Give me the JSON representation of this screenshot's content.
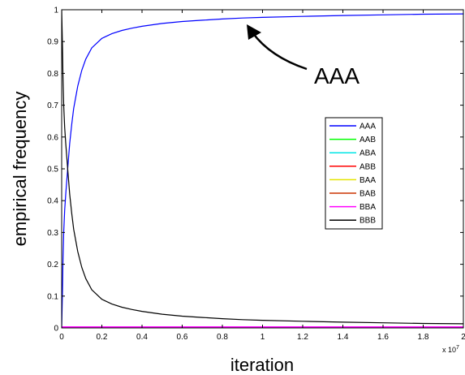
{
  "chart_data": {
    "type": "line",
    "xlabel": "iteration",
    "ylabel": "empirical frequency",
    "xlim": [
      0,
      2
    ],
    "ylim": [
      0,
      1
    ],
    "x_multiplier_label": "x 10",
    "x_multiplier_exponent": "7",
    "xticks": [
      "0",
      "0.2",
      "0.4",
      "0.6",
      "0.8",
      "1",
      "1.2",
      "1.4",
      "1.6",
      "1.8",
      "2"
    ],
    "yticks": [
      "0",
      "0.1",
      "0.2",
      "0.3",
      "0.4",
      "0.5",
      "0.6",
      "0.7",
      "0.8",
      "0.9",
      "1"
    ],
    "legend_position": "right",
    "annotation": {
      "text": "AAA",
      "points_to": [
        0.88,
        0.965
      ]
    },
    "series": [
      {
        "name": "AAA",
        "color": "#0000ff",
        "x": [
          0,
          0.004,
          0.006,
          0.01,
          0.015,
          0.02,
          0.03,
          0.04,
          0.05,
          0.06,
          0.08,
          0.1,
          0.12,
          0.15,
          0.2,
          0.25,
          0.3,
          0.35,
          0.4,
          0.5,
          0.6,
          0.7,
          0.8,
          0.9,
          1.0,
          1.2,
          1.4,
          1.6,
          1.8,
          2.0
        ],
        "y": [
          0,
          0.12,
          0.2,
          0.3,
          0.37,
          0.42,
          0.5,
          0.58,
          0.64,
          0.69,
          0.76,
          0.81,
          0.845,
          0.88,
          0.91,
          0.925,
          0.935,
          0.942,
          0.948,
          0.957,
          0.963,
          0.967,
          0.971,
          0.974,
          0.976,
          0.979,
          0.982,
          0.984,
          0.986,
          0.987
        ]
      },
      {
        "name": "AAB",
        "color": "#00ff00",
        "x": [
          0,
          2
        ],
        "y": [
          0.002,
          0.002
        ]
      },
      {
        "name": "ABA",
        "color": "#00e5e5",
        "x": [
          0,
          2
        ],
        "y": [
          0.002,
          0.002
        ]
      },
      {
        "name": "ABB",
        "color": "#ff0000",
        "x": [
          0,
          2
        ],
        "y": [
          0.003,
          0.003
        ]
      },
      {
        "name": "BAA",
        "color": "#e5e500",
        "x": [
          0,
          2
        ],
        "y": [
          0.002,
          0.002
        ]
      },
      {
        "name": "BAB",
        "color": "#cc3300",
        "x": [
          0,
          2
        ],
        "y": [
          0.002,
          0.002
        ]
      },
      {
        "name": "BBA",
        "color": "#ff00ff",
        "x": [
          0,
          2
        ],
        "y": [
          0.003,
          0.003
        ]
      },
      {
        "name": "BBB",
        "color": "#000000",
        "x": [
          0,
          0.004,
          0.006,
          0.01,
          0.015,
          0.02,
          0.03,
          0.04,
          0.05,
          0.06,
          0.08,
          0.1,
          0.12,
          0.15,
          0.2,
          0.25,
          0.3,
          0.35,
          0.4,
          0.5,
          0.6,
          0.7,
          0.8,
          0.9,
          1.0,
          1.2,
          1.4,
          1.6,
          1.8,
          2.0
        ],
        "y": [
          1.0,
          0.88,
          0.8,
          0.7,
          0.63,
          0.58,
          0.5,
          0.42,
          0.36,
          0.31,
          0.24,
          0.19,
          0.155,
          0.12,
          0.09,
          0.075,
          0.065,
          0.058,
          0.052,
          0.043,
          0.037,
          0.033,
          0.029,
          0.026,
          0.024,
          0.021,
          0.018,
          0.016,
          0.014,
          0.013
        ]
      }
    ]
  }
}
